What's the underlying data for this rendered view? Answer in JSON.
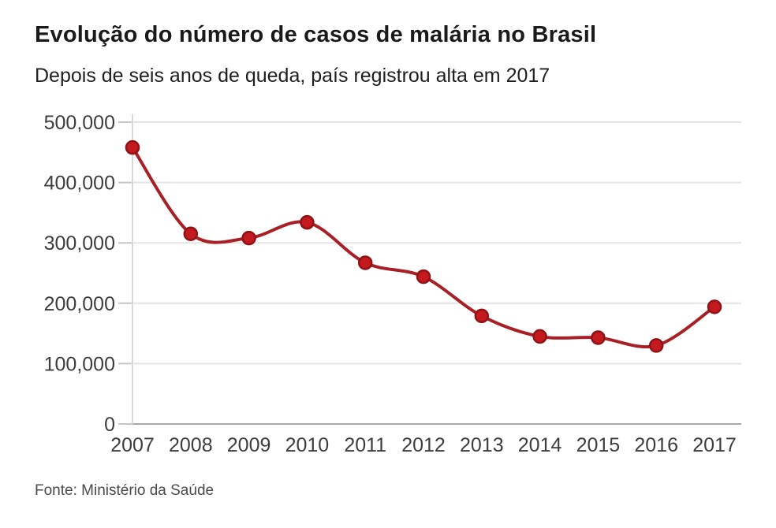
{
  "header": {
    "title": "Evolução do número de casos de malária no Brasil",
    "subtitle": "Depois de seis anos de queda, país registrou alta em 2017"
  },
  "footer": {
    "source": "Fonte: Ministério da Saúde"
  },
  "colors": {
    "background": "#ffffff",
    "grid": "#e4e4e4",
    "axis_baseline": "#a8a8a8",
    "axis_line": "#d9d9d9",
    "tick": "#c6c6c6",
    "label": "#3d3d3d",
    "title": "#1a1a1a",
    "source": "#4a4a4a"
  },
  "chart_data": {
    "type": "line",
    "title": "Evolução do número de casos de malária no Brasil",
    "subtitle": "Depois de seis anos de queda, país registrou alta em 2017",
    "source": "Fonte: Ministério da Saúde",
    "categories": [
      "2007",
      "2008",
      "2009",
      "2010",
      "2011",
      "2012",
      "2013",
      "2014",
      "2015",
      "2016",
      "2017"
    ],
    "values": [
      458000,
      315000,
      308000,
      334000,
      267000,
      244000,
      179000,
      145000,
      143000,
      130000,
      194000
    ],
    "xlabel": "",
    "ylabel": "",
    "ylim": [
      0,
      500000
    ],
    "yticks": [
      0,
      100000,
      200000,
      300000,
      400000,
      500000
    ],
    "ytick_labels": [
      "0",
      "100,000",
      "200,000",
      "300,000",
      "400,000",
      "500,000"
    ],
    "grid": "horizontal",
    "legend": "none",
    "smooth": true,
    "line_color": "#a82025",
    "marker_color": "#c4191e",
    "marker_edge_color": "#8f1215"
  }
}
